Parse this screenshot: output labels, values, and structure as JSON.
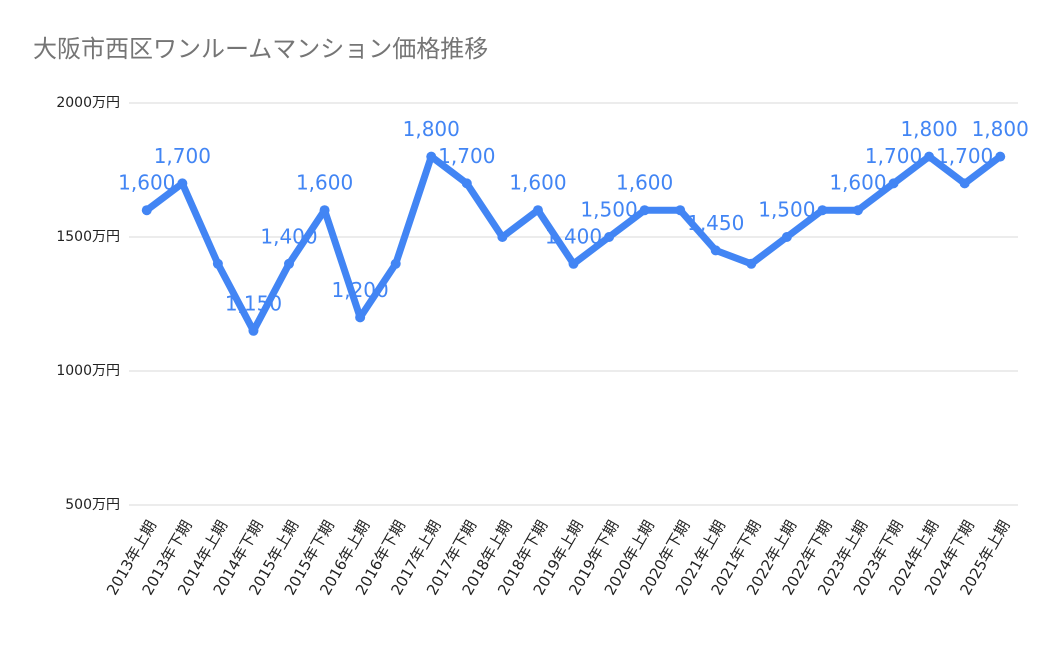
{
  "chart_data": {
    "type": "line",
    "title": "大阪市西区ワンルームマンション価格推移",
    "categories": [
      "2013年上期",
      "2013年下期",
      "2014年上期",
      "2014年下期",
      "2015年上期",
      "2015年下期",
      "2016年上期",
      "2016年下期",
      "2017年上期",
      "2017年下期",
      "2018年上期",
      "2018年下期",
      "2019年上期",
      "2019年下期",
      "2020年上期",
      "2020年下期",
      "2021年上期",
      "2021年下期",
      "2022年上期",
      "2022年下期",
      "2023年上期",
      "2023年下期",
      "2024年上期",
      "2024年下期",
      "2025年上期"
    ],
    "values": [
      1600,
      1700,
      1400,
      1150,
      1400,
      1600,
      1200,
      1400,
      1800,
      1700,
      1500,
      1600,
      1400,
      1500,
      1600,
      1600,
      1450,
      1400,
      1500,
      1600,
      1600,
      1700,
      1800,
      1700,
      1800
    ],
    "value_labels": [
      "1,600",
      "1,700",
      null,
      "1,150",
      "1,400",
      "1,600",
      "1,200",
      null,
      "1,800",
      "1,700",
      null,
      "1,600",
      "1,400",
      "1,500",
      "1,600",
      null,
      "1,450",
      null,
      "1,500",
      null,
      "1,600",
      "1,700",
      "1,800",
      "1,700",
      "1,800"
    ],
    "color": "#4285f4",
    "ylim": [
      500,
      2000
    ],
    "yticks": [
      {
        "value": 500,
        "label": "500万円"
      },
      {
        "value": 1000,
        "label": "1000万円"
      },
      {
        "value": 1500,
        "label": "1500万円"
      },
      {
        "value": 2000,
        "label": "2000万円"
      }
    ],
    "grid": true
  }
}
